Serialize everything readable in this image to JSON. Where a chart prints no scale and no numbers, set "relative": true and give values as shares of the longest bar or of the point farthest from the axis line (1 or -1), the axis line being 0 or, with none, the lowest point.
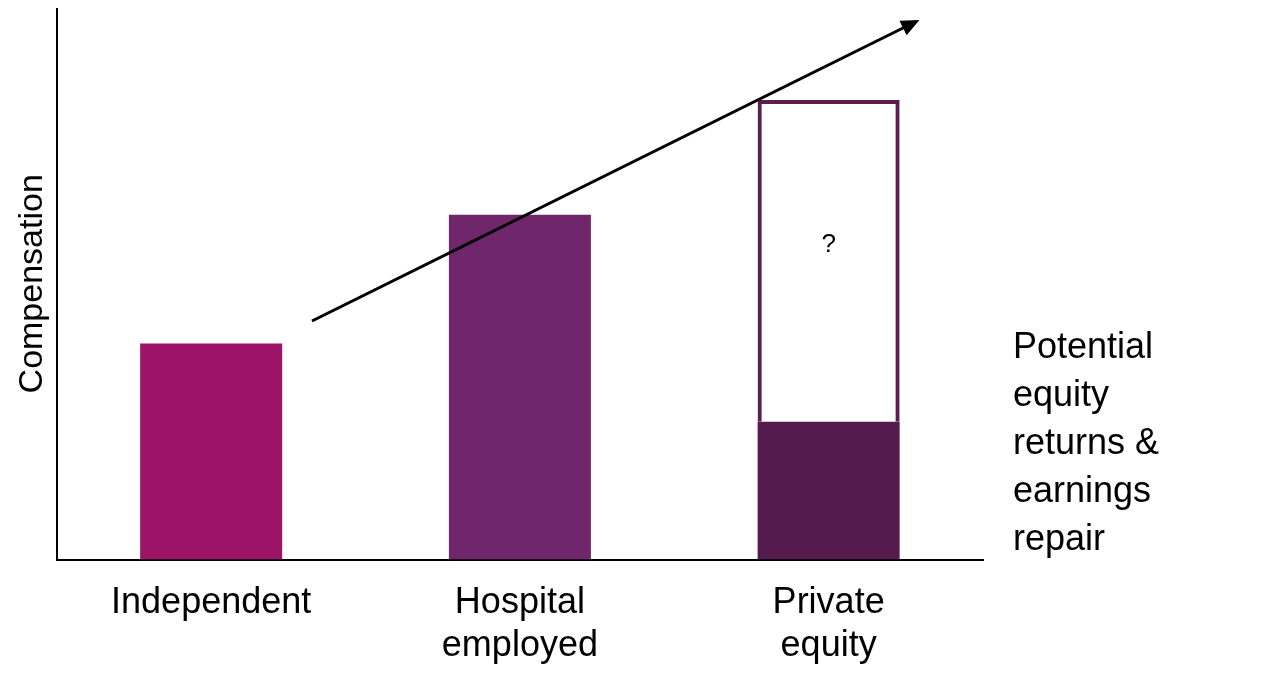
{
  "chart_data": {
    "type": "bar",
    "relative": true,
    "stacked": true,
    "ylabel": "Compensation",
    "categories": [
      "Independent",
      "Hospital employed",
      "Private equity"
    ],
    "series": [
      {
        "colors": [
          "#9b1468",
          "#6f266b",
          "#561b4e"
        ],
        "values": [
          0.47,
          0.75,
          0.3
        ]
      },
      {
        "color": "#5a1f4f",
        "line_style": "dashed",
        "values": [
          null,
          null,
          0.7
        ]
      }
    ],
    "annotations": [
      "?",
      "Potential equity returns & earnings repair"
    ],
    "grid": false,
    "legend": false
  }
}
